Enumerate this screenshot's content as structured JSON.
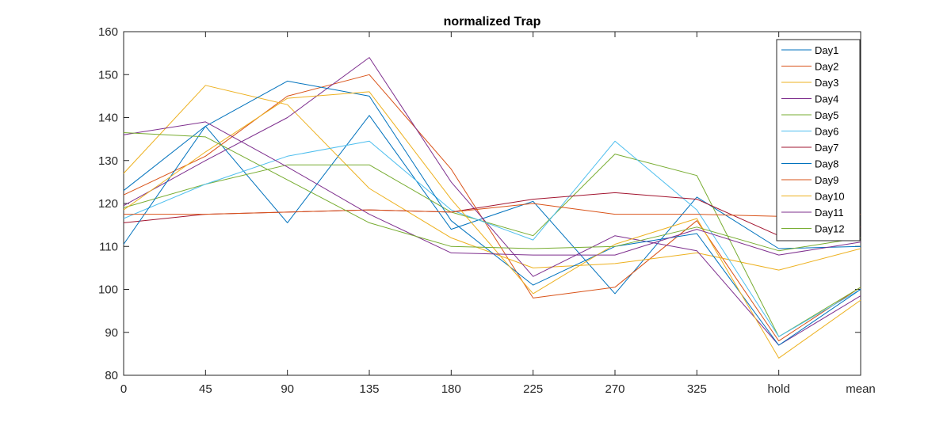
{
  "chart_data": {
    "type": "line",
    "title": "normalized Trap",
    "xlabel": "",
    "ylabel": "",
    "categories": [
      "0",
      "45",
      "90",
      "135",
      "180",
      "225",
      "270",
      "325",
      "hold",
      "mean"
    ],
    "ylim": [
      80,
      160
    ],
    "yticks": [
      80,
      90,
      100,
      110,
      120,
      130,
      140,
      150,
      160
    ],
    "grid": false,
    "legend_position": "top-right",
    "series": [
      {
        "name": "Day1",
        "color": "#0072BD",
        "values": [
          123,
          138,
          115.5,
          140.5,
          114,
          120.5,
          99,
          121.5,
          109.5,
          110
        ]
      },
      {
        "name": "Day2",
        "color": "#D95319",
        "values": [
          122,
          131,
          145,
          150,
          128,
          98,
          100.5,
          116,
          88,
          100.5
        ]
      },
      {
        "name": "Day3",
        "color": "#EDB120",
        "values": [
          127,
          147.5,
          143,
          123.5,
          112,
          105,
          106,
          108.5,
          104.5,
          109.5
        ]
      },
      {
        "name": "Day4",
        "color": "#7E2F8E",
        "values": [
          119.5,
          130,
          140,
          154,
          125,
          103,
          112.5,
          109,
          87,
          98.5
        ]
      },
      {
        "name": "Day5",
        "color": "#77AC30",
        "values": [
          119,
          124.5,
          129,
          129,
          118,
          112.5,
          131.5,
          126.5,
          89,
          100.5
        ]
      },
      {
        "name": "Day6",
        "color": "#4DBEEE",
        "values": [
          116.5,
          124.5,
          131,
          134.5,
          118.5,
          111.5,
          134.5,
          118.5,
          89,
          100
        ]
      },
      {
        "name": "Day7",
        "color": "#A2142F",
        "values": [
          115.5,
          117.5,
          118,
          118.5,
          118,
          121,
          122.5,
          121,
          112.5,
          114.5
        ]
      },
      {
        "name": "Day8",
        "color": "#0072BD",
        "values": [
          110.5,
          138,
          148.5,
          145,
          116,
          101,
          110,
          113,
          87,
          100
        ]
      },
      {
        "name": "Day9",
        "color": "#D95319",
        "values": [
          117.5,
          117.5,
          118,
          118.5,
          118,
          120,
          117.5,
          117.5,
          117,
          117.5
        ]
      },
      {
        "name": "Day10",
        "color": "#EDB120",
        "values": [
          118.5,
          132,
          144.5,
          146,
          121,
          99,
          110.5,
          116.5,
          84,
          97.5
        ]
      },
      {
        "name": "Day11",
        "color": "#7E2F8E",
        "values": [
          136,
          139,
          128.5,
          117.5,
          108.5,
          108,
          108,
          114,
          108,
          111
        ]
      },
      {
        "name": "Day12",
        "color": "#77AC30",
        "values": [
          136.5,
          135.5,
          125.5,
          115.5,
          110,
          109.5,
          110,
          114.5,
          109,
          112
        ]
      }
    ]
  }
}
